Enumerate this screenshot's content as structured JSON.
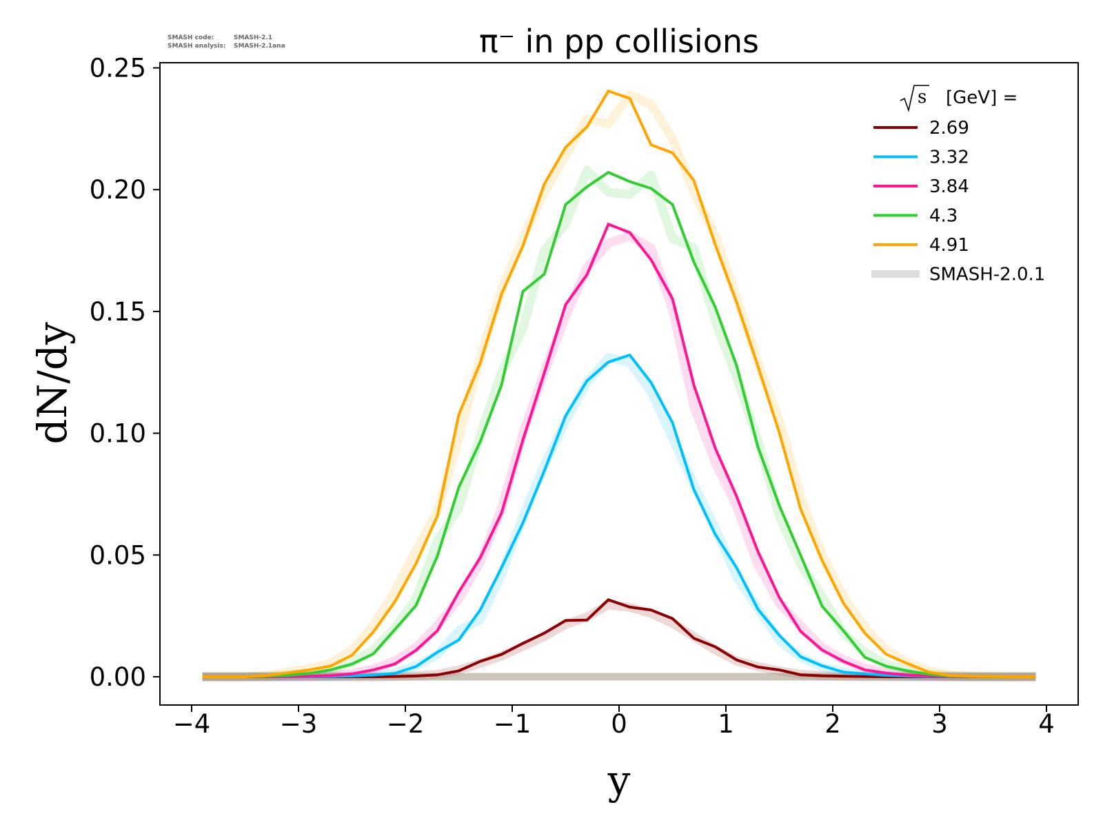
{
  "version_info": {
    "line1_label": "SMASH code:",
    "line1_value": "SMASH-2.1",
    "line2_label": "SMASH analysis:",
    "line2_value": "SMASH-2.1ana"
  },
  "chart_data": {
    "type": "line",
    "title": "π⁻ in pp collisions",
    "xlabel": "y",
    "ylabel": "dN/dy",
    "xlim": [
      -4.2,
      4.3
    ],
    "ylim": [
      -0.012,
      0.2526
    ],
    "xticks": [
      -4,
      -3,
      -2,
      -1,
      0,
      1,
      2,
      3,
      4
    ],
    "xtick_labels": [
      "−4",
      "−3",
      "−2",
      "−1",
      "0",
      "1",
      "2",
      "3",
      "4"
    ],
    "yticks": [
      0.0,
      0.05,
      0.1,
      0.15,
      0.2,
      0.25
    ],
    "ytick_labels": [
      "0.00",
      "0.05",
      "0.10",
      "0.15",
      "0.20",
      "0.25"
    ],
    "grid": false,
    "legend": {
      "placement": "top-right",
      "title_sqrt": "s",
      "title_text": "[GeV] =",
      "reference_label": "SMASH-2.0.1",
      "reference_color": "#dddddd"
    },
    "x": [
      -3.9,
      -3.7,
      -3.5,
      -3.3,
      -3.1,
      -2.9,
      -2.7,
      -2.5,
      -2.3,
      -2.1,
      -1.9,
      -1.7,
      -1.5,
      -1.3,
      -1.1,
      -0.9,
      -0.7,
      -0.5,
      -0.3,
      -0.1,
      0.1,
      0.3,
      0.5,
      0.7,
      0.9,
      1.1,
      1.3,
      1.5,
      1.7,
      1.9,
      2.1,
      2.3,
      2.5,
      2.7,
      2.9,
      3.1,
      3.3,
      3.5,
      3.7,
      3.9
    ],
    "series": [
      {
        "name": "2.69",
        "color": "#8b0000",
        "values": [
          0,
          0,
          0,
          0,
          0,
          0,
          0,
          0,
          0,
          0.0001,
          0.0003,
          0.0008,
          0.0024,
          0.0063,
          0.0092,
          0.0137,
          0.0179,
          0.0231,
          0.0233,
          0.0316,
          0.0286,
          0.0274,
          0.0239,
          0.0158,
          0.0123,
          0.0069,
          0.004,
          0.0028,
          0.0008,
          0.0004,
          0.0002,
          0.0001,
          0,
          0,
          0,
          0,
          0,
          0,
          0,
          0
        ],
        "reference": [
          0,
          0,
          0,
          0,
          0,
          0,
          0,
          0,
          0,
          0.0001,
          0.0004,
          0.001,
          0.0028,
          0.0055,
          0.0085,
          0.0125,
          0.0165,
          0.0215,
          0.0245,
          0.0295,
          0.0285,
          0.026,
          0.022,
          0.0165,
          0.011,
          0.0065,
          0.0042,
          0.0024,
          0.001,
          0.0005,
          0.0002,
          0.0001,
          0,
          0,
          0,
          0,
          0,
          0,
          0,
          0
        ]
      },
      {
        "name": "3.32",
        "color": "#00bfff",
        "values": [
          0,
          0,
          0,
          0,
          0,
          0,
          0.0001,
          0.0003,
          0.0007,
          0.0014,
          0.0042,
          0.0101,
          0.0151,
          0.0274,
          0.0448,
          0.0632,
          0.0845,
          0.1071,
          0.1215,
          0.1292,
          0.1321,
          0.1208,
          0.1043,
          0.0769,
          0.0585,
          0.0448,
          0.0277,
          0.017,
          0.0082,
          0.0045,
          0.0019,
          0.0012,
          0.0006,
          0.0003,
          0.0001,
          0,
          0,
          0,
          0,
          0
        ],
        "reference": [
          0,
          0,
          0,
          0,
          0,
          0,
          0.0001,
          0.0003,
          0.0008,
          0.0016,
          0.0045,
          0.009,
          0.019,
          0.0235,
          0.042,
          0.066,
          0.087,
          0.105,
          0.121,
          0.131,
          0.129,
          0.117,
          0.098,
          0.079,
          0.061,
          0.041,
          0.028,
          0.015,
          0.008,
          0.004,
          0.002,
          0.001,
          0.0005,
          0.0002,
          0.0001,
          0,
          0,
          0,
          0,
          0
        ]
      },
      {
        "name": "3.84",
        "color": "#ff1493",
        "values": [
          0,
          0,
          0,
          0,
          0.0001,
          0.0002,
          0.0005,
          0.0012,
          0.0028,
          0.0052,
          0.0109,
          0.0189,
          0.0348,
          0.0488,
          0.0672,
          0.0972,
          0.1247,
          0.1528,
          0.1651,
          0.1858,
          0.1824,
          0.1712,
          0.1552,
          0.1198,
          0.0939,
          0.0741,
          0.0514,
          0.0325,
          0.0186,
          0.011,
          0.0063,
          0.0028,
          0.0015,
          0.0007,
          0.0003,
          0.0001,
          0,
          0,
          0,
          0
        ],
        "reference": [
          0,
          0,
          0,
          0,
          0.0001,
          0.0003,
          0.0006,
          0.0014,
          0.0032,
          0.0065,
          0.012,
          0.021,
          0.032,
          0.047,
          0.069,
          0.1,
          0.125,
          0.148,
          0.168,
          0.178,
          0.181,
          0.176,
          0.151,
          0.111,
          0.088,
          0.07,
          0.046,
          0.03,
          0.021,
          0.012,
          0.007,
          0.0035,
          0.0017,
          0.0008,
          0.0003,
          0.0001,
          0,
          0,
          0,
          0
        ]
      },
      {
        "name": "4.3",
        "color": "#32cd32",
        "values": [
          0,
          0,
          0,
          0.0002,
          0.0006,
          0.0014,
          0.0028,
          0.0052,
          0.0094,
          0.0193,
          0.0293,
          0.0496,
          0.0778,
          0.0965,
          0.1198,
          0.1582,
          0.1653,
          0.1939,
          0.2012,
          0.2071,
          0.2033,
          0.2005,
          0.1939,
          0.1703,
          0.1518,
          0.1278,
          0.0943,
          0.0703,
          0.0498,
          0.029,
          0.0189,
          0.008,
          0.0043,
          0.0024,
          0.001,
          0.0003,
          0.0001,
          0,
          0,
          0
        ],
        "reference": [
          0,
          0,
          0,
          0.0002,
          0.0007,
          0.0016,
          0.003,
          0.0058,
          0.011,
          0.02,
          0.032,
          0.056,
          0.069,
          0.099,
          0.125,
          0.143,
          0.175,
          0.186,
          0.208,
          0.199,
          0.198,
          0.206,
          0.18,
          0.176,
          0.146,
          0.123,
          0.097,
          0.066,
          0.046,
          0.033,
          0.018,
          0.01,
          0.005,
          0.0028,
          0.0012,
          0.0004,
          0.0001,
          0,
          0,
          0
        ]
      },
      {
        "name": "4.91",
        "color": "#ffa500",
        "values": [
          0,
          0,
          0,
          0.0005,
          0.0016,
          0.0028,
          0.0044,
          0.0088,
          0.0184,
          0.0307,
          0.0465,
          0.0661,
          0.1076,
          0.1288,
          0.1571,
          0.1769,
          0.2023,
          0.2174,
          0.2258,
          0.2405,
          0.2375,
          0.2184,
          0.2151,
          0.2038,
          0.1775,
          0.1538,
          0.1275,
          0.1002,
          0.0688,
          0.0478,
          0.0302,
          0.0179,
          0.0092,
          0.0054,
          0.0019,
          0.0005,
          0.0002,
          0.0001,
          0,
          0
        ],
        "reference": [
          0,
          0,
          0,
          0.0006,
          0.0018,
          0.0034,
          0.0055,
          0.011,
          0.021,
          0.035,
          0.052,
          0.068,
          0.098,
          0.131,
          0.159,
          0.18,
          0.199,
          0.214,
          0.229,
          0.227,
          0.239,
          0.235,
          0.221,
          0.199,
          0.181,
          0.156,
          0.129,
          0.105,
          0.074,
          0.05,
          0.033,
          0.02,
          0.011,
          0.006,
          0.0025,
          0.0008,
          0.0003,
          0.0001,
          0,
          0
        ]
      }
    ]
  }
}
